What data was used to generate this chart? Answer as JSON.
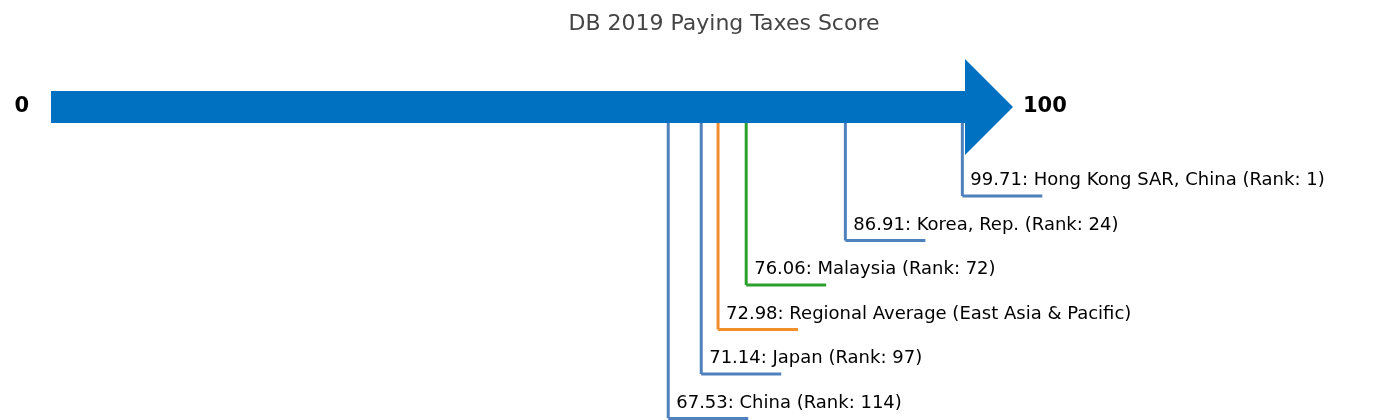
{
  "chart_data": {
    "type": "other",
    "title": "DB 2019 Paying Taxes Score",
    "categories": [
      ": Hong Kong SAR, China (Rank: 1)",
      ": Korea, Rep. (Rank: 24)",
      ": Malaysia (Rank: 72)",
      ": Regional Average (East Asia & Pacific)",
      ": Japan (Rank: 97)",
      ": China (Rank: 114)"
    ],
    "values": [
      99.71,
      86.91,
      76.06,
      72.98,
      71.14,
      67.53
    ],
    "colors": [
      "#4f81bd",
      "#4f81bd",
      "#2ca02c",
      "#f28e2b",
      "#4f81bd",
      "#4f81bd"
    ],
    "data_labels": true,
    "annotations": [
      "0",
      "100"
    ]
  }
}
